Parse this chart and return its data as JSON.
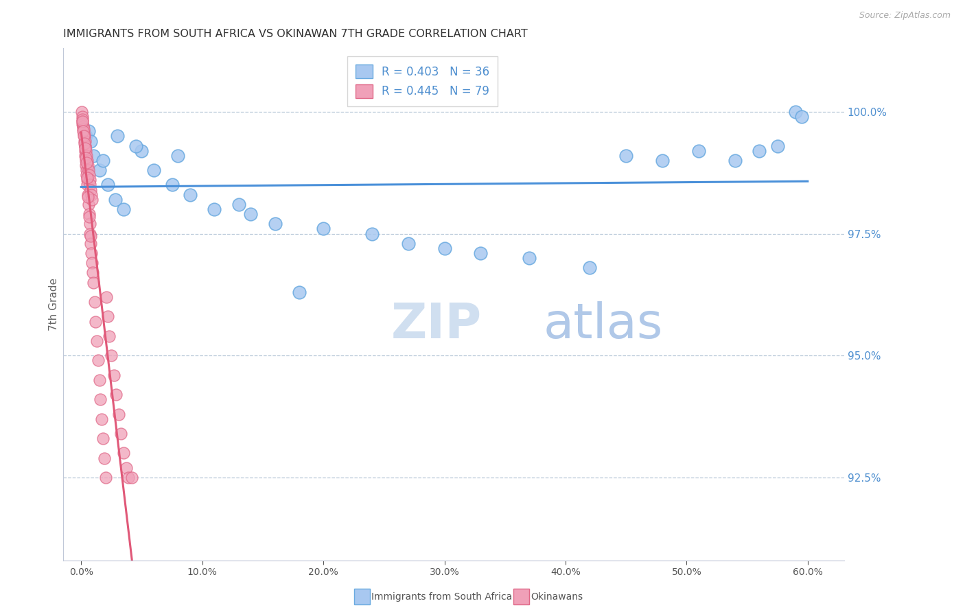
{
  "title": "IMMIGRANTS FROM SOUTH AFRICA VS OKINAWAN 7TH GRADE CORRELATION CHART",
  "source": "Source: ZipAtlas.com",
  "ylabel": "7th Grade",
  "x_tick_labels": [
    "0.0%",
    "10.0%",
    "20.0%",
    "30.0%",
    "40.0%",
    "50.0%",
    "60.0%"
  ],
  "x_tick_vals": [
    0.0,
    10.0,
    20.0,
    30.0,
    40.0,
    50.0,
    60.0
  ],
  "y_tick_labels": [
    "92.5%",
    "95.0%",
    "97.5%",
    "100.0%"
  ],
  "y_tick_vals": [
    92.5,
    95.0,
    97.5,
    100.0
  ],
  "ylim": [
    90.8,
    101.3
  ],
  "xlim": [
    -1.5,
    63.0
  ],
  "blue_color": "#a8c8f0",
  "blue_edge_color": "#6aaae0",
  "pink_color": "#f0a0b8",
  "pink_edge_color": "#e06888",
  "blue_line_color": "#4a90d9",
  "pink_line_color": "#e05878",
  "grid_color": "#b8c8d8",
  "axis_color": "#c0c8d8",
  "title_color": "#333333",
  "right_label_color": "#5090d0",
  "watermark_zip_color": "#d0dff0",
  "watermark_atlas_color": "#b0c8e8",
  "bottom_legend": [
    "Immigrants from South Africa",
    "Okinawans"
  ],
  "blue_x": [
    0.4,
    0.6,
    0.8,
    1.0,
    1.5,
    1.8,
    2.2,
    2.8,
    3.5,
    5.0,
    6.0,
    7.5,
    9.0,
    11.0,
    14.0,
    16.0,
    20.0,
    24.0,
    27.0,
    30.0,
    33.0,
    37.0,
    42.0,
    45.0,
    48.0,
    51.0,
    54.0,
    56.0,
    57.5,
    59.0,
    3.0,
    4.5,
    8.0,
    13.0,
    18.0,
    59.5
  ],
  "blue_y": [
    99.5,
    99.6,
    99.4,
    99.1,
    98.8,
    99.0,
    98.5,
    98.2,
    98.0,
    99.2,
    98.8,
    98.5,
    98.3,
    98.0,
    97.9,
    97.7,
    97.6,
    97.5,
    97.3,
    97.2,
    97.1,
    97.0,
    96.8,
    99.1,
    99.0,
    99.2,
    99.0,
    99.2,
    99.3,
    100.0,
    99.5,
    99.3,
    99.1,
    98.1,
    96.3,
    99.9
  ],
  "pink_x": [
    0.05,
    0.08,
    0.1,
    0.12,
    0.15,
    0.18,
    0.2,
    0.22,
    0.25,
    0.28,
    0.3,
    0.32,
    0.35,
    0.38,
    0.4,
    0.42,
    0.45,
    0.48,
    0.5,
    0.55,
    0.6,
    0.65,
    0.7,
    0.75,
    0.8,
    0.85,
    0.9,
    0.95,
    1.0,
    1.1,
    1.2,
    1.3,
    1.4,
    1.5,
    1.6,
    1.7,
    1.8,
    1.9,
    2.0,
    2.1,
    2.2,
    2.3,
    2.5,
    2.7,
    2.9,
    3.1,
    3.3,
    3.5,
    3.7,
    3.9,
    0.15,
    0.2,
    0.25,
    0.3,
    0.35,
    0.4,
    0.45,
    0.5,
    0.55,
    0.6,
    0.65,
    0.7,
    0.75,
    0.8,
    0.85,
    0.9,
    0.1,
    0.12,
    0.18,
    0.22,
    0.28,
    0.32,
    0.38,
    0.42,
    0.48,
    0.58,
    0.68,
    0.78,
    4.2
  ],
  "pink_y": [
    100.0,
    99.9,
    99.8,
    99.75,
    99.7,
    99.65,
    99.6,
    99.55,
    99.5,
    99.4,
    99.3,
    99.2,
    99.1,
    99.0,
    98.9,
    98.8,
    98.7,
    98.6,
    98.5,
    98.3,
    98.1,
    97.9,
    97.7,
    97.5,
    97.3,
    97.1,
    96.9,
    96.7,
    96.5,
    96.1,
    95.7,
    95.3,
    94.9,
    94.5,
    94.1,
    93.7,
    93.3,
    92.9,
    92.5,
    96.2,
    95.8,
    95.4,
    95.0,
    94.6,
    94.2,
    93.8,
    93.4,
    93.0,
    92.7,
    92.5,
    99.7,
    99.65,
    99.5,
    99.4,
    99.3,
    99.2,
    99.1,
    99.0,
    98.9,
    98.8,
    98.7,
    98.6,
    98.5,
    98.4,
    98.3,
    98.2,
    99.85,
    99.8,
    99.6,
    99.5,
    99.35,
    99.25,
    99.05,
    98.95,
    98.65,
    98.25,
    97.85,
    97.45,
    92.5
  ]
}
